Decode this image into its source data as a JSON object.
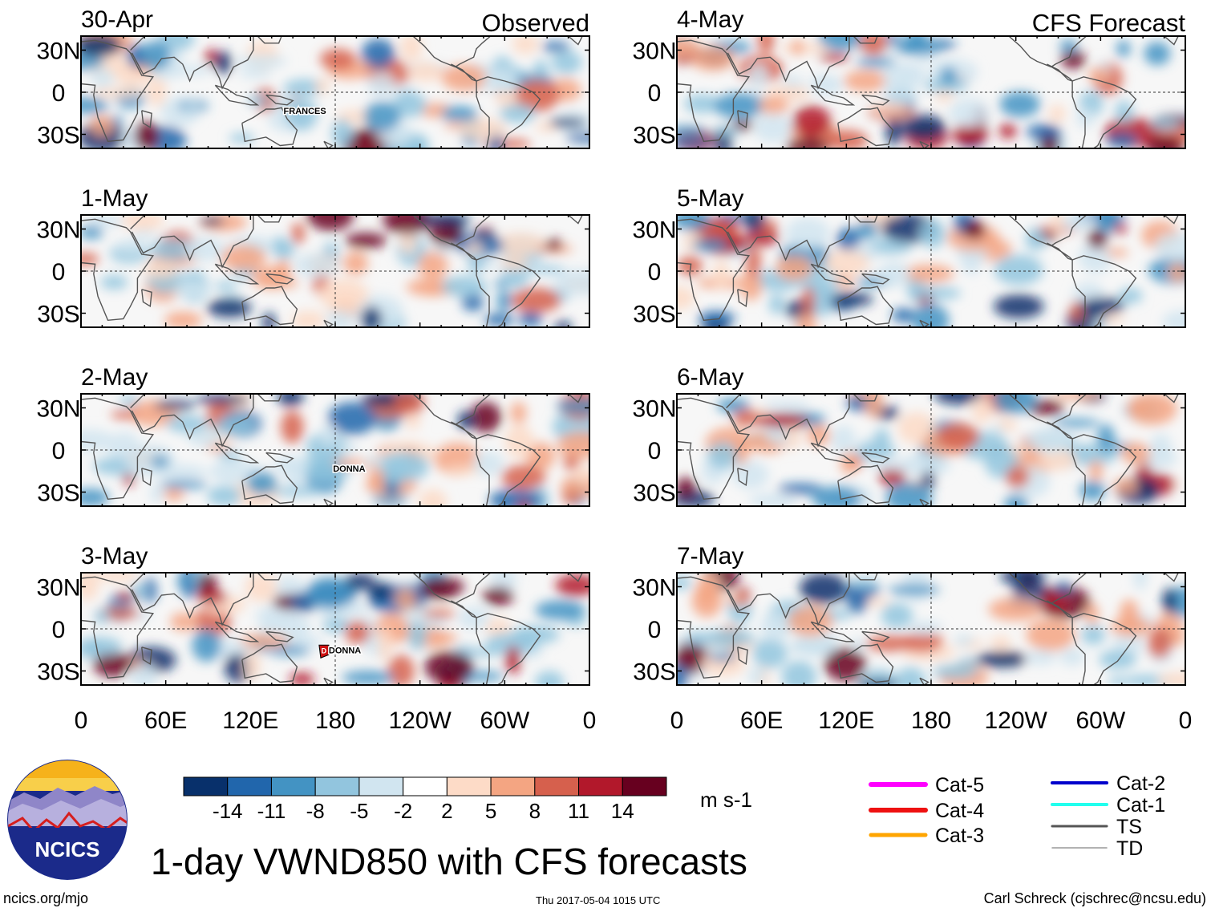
{
  "chart_data": {
    "type": "heatmap",
    "title": "1-day VWND850 with CFS forecasts",
    "variable": "VWND850",
    "units": "m s-1",
    "column_titles": {
      "observed": "Observed",
      "forecast": "CFS Forecast"
    },
    "x_ticks": [
      "0",
      "60E",
      "120E",
      "180",
      "120W",
      "60W",
      "0"
    ],
    "y_ticks": [
      "30N",
      "0",
      "30S"
    ],
    "ylim": [
      -40,
      40
    ],
    "panels": [
      {
        "date": "30-Apr",
        "kind": "observed",
        "storms": [
          {
            "name": "FRANCES",
            "lon": 140,
            "lat": -13
          }
        ]
      },
      {
        "date": "1-May",
        "kind": "observed",
        "storms": []
      },
      {
        "date": "2-May",
        "kind": "observed",
        "storms": [
          {
            "name": "DONNA",
            "lon": 175,
            "lat": -13
          }
        ]
      },
      {
        "date": "3-May",
        "kind": "observed",
        "storms": [
          {
            "name": "DONNA",
            "lon": 172,
            "lat": -15,
            "category_marker": "D"
          }
        ]
      },
      {
        "date": "4-May",
        "kind": "forecast",
        "storms": []
      },
      {
        "date": "5-May",
        "kind": "forecast",
        "storms": []
      },
      {
        "date": "6-May",
        "kind": "forecast",
        "storms": []
      },
      {
        "date": "7-May",
        "kind": "forecast",
        "storms": []
      }
    ],
    "colorbar": {
      "tick_labels": [
        "-14",
        "-11",
        "-8",
        "-5",
        "-2",
        "2",
        "5",
        "8",
        "11",
        "14"
      ],
      "colors": [
        "#08306b",
        "#2166ac",
        "#4393c3",
        "#92c5de",
        "#d1e5f0",
        "#ffffff",
        "#fddbc7",
        "#f4a582",
        "#d6604d",
        "#b2182b",
        "#67001f"
      ]
    },
    "legend": [
      {
        "label": "Cat-5",
        "color": "#ff00ff",
        "width": 6
      },
      {
        "label": "Cat-4",
        "color": "#ee1111",
        "width": 6
      },
      {
        "label": "Cat-3",
        "color": "#ffa500",
        "width": 5
      },
      {
        "label": "Cat-2",
        "color": "#0000cc",
        "width": 4
      },
      {
        "label": "Cat-1",
        "color": "#22ffee",
        "width": 4
      },
      {
        "label": "TS",
        "color": "#555555",
        "width": 3
      },
      {
        "label": "TD",
        "color": "#999999",
        "width": 1.5
      }
    ]
  },
  "branding": {
    "logo_text": "NCICS"
  },
  "footer": {
    "site": "ncics.org/mjo",
    "timestamp": "Thu 2017-05-04 1015 UTC",
    "credit": "Carl Schreck (cjschrec@ncsu.edu)"
  }
}
